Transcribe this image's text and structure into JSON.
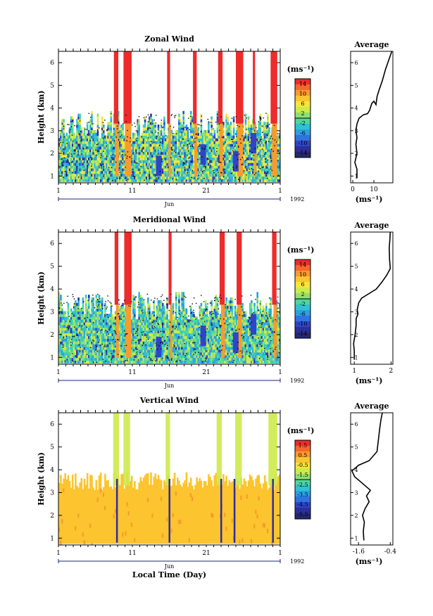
{
  "chart_data": [
    {
      "type": "heatmap",
      "title": "Zonal Wind",
      "ylabel": "Height (km)",
      "xlabel": "",
      "x_ticks": [
        "1",
        "11",
        "21",
        "1"
      ],
      "month": "Jun",
      "year": "1992",
      "ylim": [
        0.7,
        6.5
      ],
      "y_ticks": [
        "1",
        "2",
        "3",
        "4",
        "5",
        "6"
      ],
      "colorbar": {
        "unit": "(ms⁻¹)",
        "ticks": [
          "14",
          "10",
          "6",
          "2",
          "-2",
          "-6",
          "-10",
          "-14"
        ]
      },
      "profile": {
        "title": "Average",
        "xlabel": "(ms⁻¹)",
        "x_ticks": [
          "0",
          "10"
        ],
        "xlim": [
          -1,
          19
        ],
        "points": [
          [
            2,
            0.9
          ],
          [
            2,
            1.3
          ],
          [
            1,
            1.6
          ],
          [
            2,
            2.0
          ],
          [
            1.5,
            2.4
          ],
          [
            2,
            2.7
          ],
          [
            1.5,
            3.0
          ],
          [
            2,
            3.3
          ],
          [
            3,
            3.55
          ],
          [
            5,
            3.7
          ],
          [
            7,
            3.75
          ],
          [
            8,
            3.9
          ],
          [
            9,
            4.2
          ],
          [
            10,
            4.3
          ],
          [
            11,
            4.15
          ],
          [
            11.5,
            4.5
          ],
          [
            12.5,
            4.8
          ],
          [
            14,
            5.2
          ],
          [
            15.5,
            5.7
          ],
          [
            17,
            6.1
          ],
          [
            18.5,
            6.5
          ]
        ]
      }
    },
    {
      "type": "heatmap",
      "title": "Meridional Wind",
      "ylabel": "Height (km)",
      "xlabel": "",
      "x_ticks": [
        "1",
        "11",
        "21",
        "1"
      ],
      "month": "Jun",
      "year": "1992",
      "ylim": [
        0.7,
        6.5
      ],
      "y_ticks": [
        "1",
        "2",
        "3",
        "4",
        "5",
        "6"
      ],
      "colorbar": {
        "unit": "(ms⁻¹)",
        "ticks": [
          "14",
          "10",
          "6",
          "2",
          "-2",
          "-6",
          "-10",
          "-14"
        ]
      },
      "profile": {
        "title": "Average",
        "xlabel": "(ms⁻¹)",
        "x_ticks": [
          "1",
          "2"
        ],
        "xlim": [
          0.9,
          2.05
        ],
        "points": [
          [
            1.0,
            0.9
          ],
          [
            1.0,
            1.3
          ],
          [
            0.98,
            1.6
          ],
          [
            1.02,
            2.0
          ],
          [
            1.05,
            2.4
          ],
          [
            1.05,
            2.7
          ],
          [
            1.1,
            2.9
          ],
          [
            1.08,
            3.1
          ],
          [
            1.12,
            3.4
          ],
          [
            1.2,
            3.6
          ],
          [
            1.4,
            3.8
          ],
          [
            1.6,
            4.0
          ],
          [
            1.75,
            4.3
          ],
          [
            1.88,
            4.6
          ],
          [
            1.98,
            4.9
          ],
          [
            1.96,
            5.3
          ],
          [
            1.95,
            5.8
          ],
          [
            1.97,
            6.2
          ],
          [
            1.98,
            6.5
          ]
        ]
      }
    },
    {
      "type": "heatmap",
      "title": "Vertical Wind",
      "ylabel": "Height (km)",
      "xlabel": "Local Time (Day)",
      "x_ticks": [
        "1",
        "11",
        "21",
        "1"
      ],
      "month": "Jun",
      "year": "1992",
      "ylim": [
        0.7,
        6.5
      ],
      "y_ticks": [
        "1",
        "2",
        "3",
        "4",
        "5",
        "6"
      ],
      "colorbar": {
        "unit": "(ms⁻¹)",
        "ticks": [
          "1.5",
          "0.5",
          "-0.5",
          "-1.5",
          "-2.5",
          "-3.5",
          "-4.5",
          "-5.5"
        ]
      },
      "profile": {
        "title": "Average",
        "xlabel": "(ms⁻¹)",
        "x_ticks": [
          "-1.6",
          "-0.4"
        ],
        "xlim": [
          -1.9,
          -0.3
        ],
        "points": [
          [
            -1.4,
            0.9
          ],
          [
            -1.42,
            1.3
          ],
          [
            -1.38,
            1.7
          ],
          [
            -1.45,
            2.0
          ],
          [
            -1.35,
            2.3
          ],
          [
            -1.2,
            2.6
          ],
          [
            -1.3,
            2.85
          ],
          [
            -1.15,
            3.1
          ],
          [
            -1.35,
            3.3
          ],
          [
            -1.55,
            3.5
          ],
          [
            -1.75,
            3.7
          ],
          [
            -1.85,
            3.95
          ],
          [
            -1.6,
            4.2
          ],
          [
            -1.2,
            4.4
          ],
          [
            -0.9,
            4.8
          ],
          [
            -0.85,
            5.3
          ],
          [
            -0.8,
            5.8
          ],
          [
            -0.75,
            6.2
          ],
          [
            -0.7,
            6.5
          ]
        ]
      }
    }
  ],
  "colors": {
    "colorbar_bands": [
      "#ee2b2b",
      "#f7672a",
      "#fb9a2c",
      "#fcc42e",
      "#f6e63a",
      "#cdea4c",
      "#8fe06c",
      "#4fd6a0",
      "#2ec3d0",
      "#2b9fe6",
      "#2f73e2",
      "#2f45c8",
      "#2c2f9a",
      "#242870"
    ],
    "vertical_field": "#fcc42e",
    "vertical_field_edge": "#f79a2c"
  }
}
